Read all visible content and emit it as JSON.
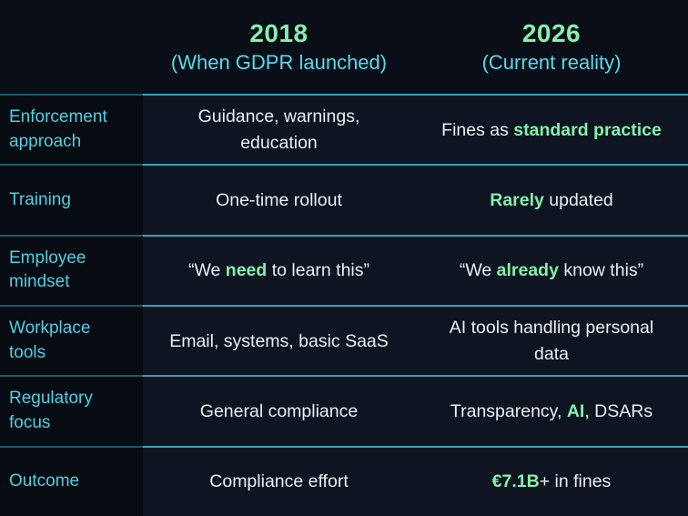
{
  "colors": {
    "bg_header": "#0a0f17",
    "bg_label": "#070b12",
    "bg_cell": "#0e1521",
    "divider": "#38a0b2",
    "divider_dim": "#1d5b69",
    "green": "#86efac",
    "cyan": "#5ad8ea",
    "label_cyan": "#4dd0e2",
    "text": "#eceff3"
  },
  "header": {
    "columns": [
      {
        "year": "2018",
        "subtitle": "(When GDPR launched)"
      },
      {
        "year": "2026",
        "subtitle": "(Current reality)"
      }
    ]
  },
  "rows": [
    {
      "label": "Enforcement approach",
      "col2018": [
        {
          "t": "Guidance, warnings, education",
          "h": false
        }
      ],
      "col2026": [
        {
          "t": "Fines as ",
          "h": false
        },
        {
          "t": "standard practice",
          "h": true
        }
      ]
    },
    {
      "label": "Training",
      "col2018": [
        {
          "t": "One-time rollout",
          "h": false
        }
      ],
      "col2026": [
        {
          "t": "Rarely",
          "h": true
        },
        {
          "t": " updated",
          "h": false
        }
      ]
    },
    {
      "label": "Employee mindset",
      "col2018": [
        {
          "t": "“We ",
          "h": false
        },
        {
          "t": "need",
          "h": true
        },
        {
          "t": " to learn this”",
          "h": false
        }
      ],
      "col2026": [
        {
          "t": "“We ",
          "h": false
        },
        {
          "t": "already",
          "h": true
        },
        {
          "t": " know this”",
          "h": false
        }
      ]
    },
    {
      "label": "Workplace tools",
      "col2018": [
        {
          "t": "Email, systems, basic SaaS",
          "h": false
        }
      ],
      "col2026": [
        {
          "t": "AI tools handling personal data",
          "h": false
        }
      ]
    },
    {
      "label": "Regulatory focus",
      "col2018": [
        {
          "t": "General compliance",
          "h": false
        }
      ],
      "col2026": [
        {
          "t": "Transparency, ",
          "h": false
        },
        {
          "t": "AI",
          "h": true
        },
        {
          "t": ", DSARs",
          "h": false
        }
      ]
    },
    {
      "label": "Outcome",
      "col2018": [
        {
          "t": "Compliance effort",
          "h": false
        }
      ],
      "col2026": [
        {
          "t": "€7.1B",
          "h": true
        },
        {
          "t": "+ in fines",
          "h": false
        }
      ]
    }
  ],
  "chart_data": {
    "type": "table",
    "title": "",
    "columns": [
      "",
      "2018 (When GDPR launched)",
      "2026 (Current reality)"
    ],
    "rows": [
      [
        "Enforcement approach",
        "Guidance, warnings, education",
        "Fines as standard practice"
      ],
      [
        "Training",
        "One-time rollout",
        "Rarely updated"
      ],
      [
        "Employee mindset",
        "“We need to learn this”",
        "“We already know this”"
      ],
      [
        "Workplace tools",
        "Email, systems, basic SaaS",
        "AI tools handling personal data"
      ],
      [
        "Regulatory focus",
        "General compliance",
        "Transparency, AI, DSARs"
      ],
      [
        "Outcome",
        "Compliance effort",
        "€7.1B+ in fines"
      ]
    ],
    "highlighted_phrases": [
      "standard practice",
      "Rarely",
      "need",
      "already",
      "AI",
      "€7.1B"
    ],
    "legend_position": "none",
    "grid": "horizontal-dividers"
  }
}
